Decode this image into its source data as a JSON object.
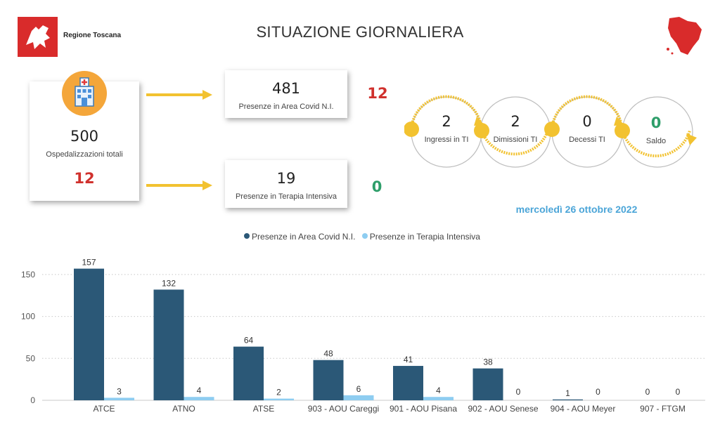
{
  "header": {
    "org_name": "Regione Toscana",
    "title": "SITUAZIONE GIORNALIERA"
  },
  "hospital": {
    "total_value": "500",
    "total_label": "Ospedalizzazioni totali",
    "total_delta": "12",
    "covid_area_value": "481",
    "covid_area_label": "Presenze in Area Covid N.I.",
    "covid_area_delta": "12",
    "icu_value": "19",
    "icu_label": "Presenze in Terapia Intensiva",
    "icu_delta": "0"
  },
  "icu_flow": {
    "ingressi_value": "2",
    "ingressi_label": "Ingressi in TI",
    "dimissioni_value": "2",
    "dimissioni_label": "Dimissioni TI",
    "decessi_value": "0",
    "decessi_label": "Decessi TI",
    "saldo_value": "0",
    "saldo_label": "Saldo"
  },
  "date_label": "mercoledì 26 ottobre 2022",
  "colors": {
    "covid": "#2b5877",
    "icu": "#8ecdf1",
    "red": "#d0312d",
    "green": "#2e9e6a",
    "arrow": "#f2c230",
    "date": "#4ba5d8"
  },
  "chart_data": {
    "type": "bar",
    "categories": [
      "ATCE",
      "ATNO",
      "ATSE",
      "903 - AOU Careggi",
      "901 - AOU Pisana",
      "902 - AOU Senese",
      "904 - AOU Meyer",
      "907 - FTGM"
    ],
    "series": [
      {
        "name": "Presenze in Area Covid N.I.",
        "values": [
          157,
          132,
          64,
          48,
          41,
          38,
          1,
          0
        ]
      },
      {
        "name": "Presenze in Terapia Intensiva",
        "values": [
          3,
          4,
          2,
          6,
          4,
          0,
          0,
          0
        ]
      }
    ],
    "yticks": [
      0,
      50,
      100,
      150
    ],
    "ylim": [
      0,
      165
    ],
    "legend": "top-center",
    "grid": true
  }
}
